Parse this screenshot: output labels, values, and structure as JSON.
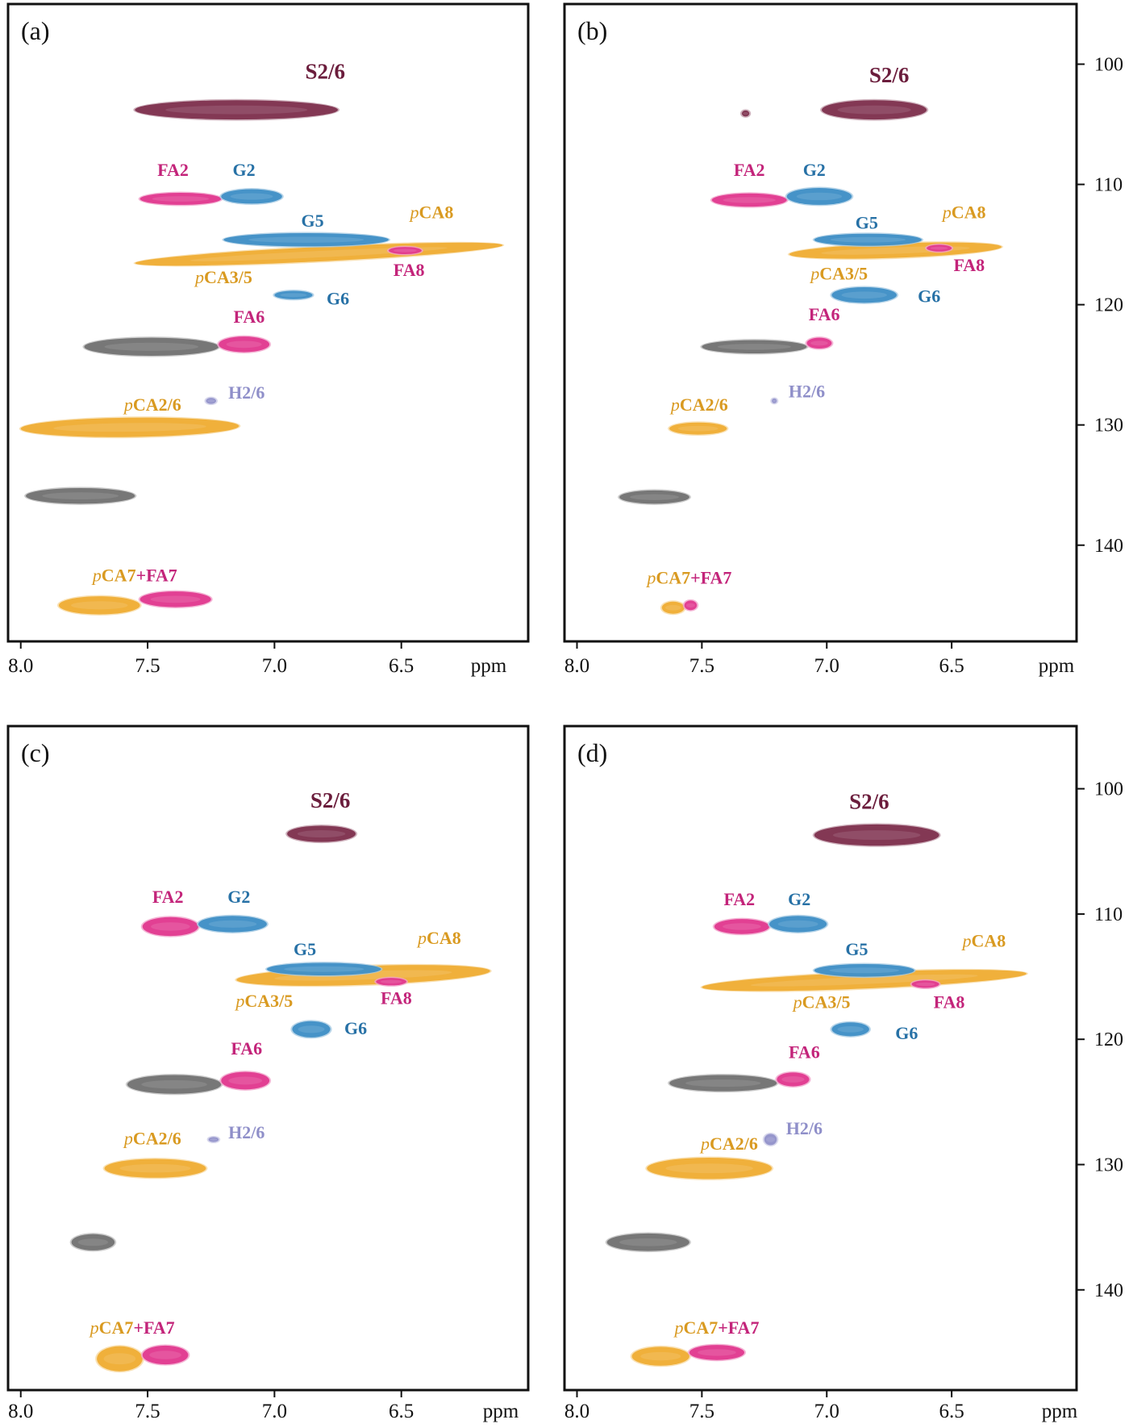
{
  "colors": {
    "S": "#7a2a48",
    "G": "#3a8cc4",
    "FA": "#e0338c",
    "pCA": "#eeab2e",
    "H": "#8f8fc9",
    "gray": "#6e6e6e",
    "label_S": "#6b1d3c",
    "label_G": "#2771a6",
    "label_FA": "#c3247a",
    "label_pCA": "#d99a21",
    "label_H": "#8f8fc9"
  },
  "chart_data": [
    {
      "type": "scatter",
      "panel_label": "(a)",
      "x_axis": {
        "range": [
          8.05,
          6.0
        ],
        "ticks": [
          8.0,
          7.5,
          7.0,
          6.5
        ],
        "unit": "ppm"
      },
      "y_axis": {
        "range": [
          95,
          148
        ],
        "ticks": [
          100,
          110,
          120,
          130,
          140
        ]
      },
      "peaks": [
        {
          "x1": 7.55,
          "x2": 6.75,
          "y": 103.8,
          "rh": 0.8,
          "c": "S"
        },
        {
          "x1": 7.53,
          "x2": 7.21,
          "y": 111.2,
          "rh": 0.5,
          "c": "FA"
        },
        {
          "x1": 7.21,
          "x2": 6.97,
          "y": 111.0,
          "rh": 0.6,
          "c": "G"
        },
        {
          "x1": 7.55,
          "x2": 6.1,
          "y": 115.8,
          "rh": 0.6,
          "c": "pCA",
          "tilt": 2.8
        },
        {
          "x1": 7.2,
          "x2": 6.55,
          "y": 114.6,
          "rh": 0.55,
          "c": "G"
        },
        {
          "x1": 6.55,
          "x2": 6.42,
          "y": 115.5,
          "rh": 0.3,
          "c": "FA"
        },
        {
          "x1": 7.0,
          "x2": 6.85,
          "y": 119.2,
          "rh": 0.35,
          "c": "G"
        },
        {
          "x1": 7.75,
          "x2": 7.22,
          "y": 123.5,
          "rh": 0.75,
          "c": "gray"
        },
        {
          "x1": 7.22,
          "x2": 7.02,
          "y": 123.3,
          "rh": 0.65,
          "c": "FA"
        },
        {
          "x1": 7.27,
          "x2": 7.23,
          "y": 128.0,
          "rh": 0.25,
          "c": "H"
        },
        {
          "x1": 8.0,
          "x2": 7.14,
          "y": 130.2,
          "rh": 0.8,
          "c": "pCA",
          "tilt": 0.7
        },
        {
          "x1": 7.98,
          "x2": 7.55,
          "y": 135.9,
          "rh": 0.65,
          "c": "gray"
        },
        {
          "x1": 7.85,
          "x2": 7.53,
          "y": 145.0,
          "rh": 0.75,
          "c": "pCA"
        },
        {
          "x1": 7.53,
          "x2": 7.25,
          "y": 144.5,
          "rh": 0.65,
          "c": "FA"
        }
      ],
      "labels": [
        {
          "t": "S2/6",
          "x": 6.8,
          "y": 101.2,
          "c": "label_S",
          "big": true
        },
        {
          "t": "FA2",
          "x": 7.4,
          "y": 109.3,
          "c": "label_FA"
        },
        {
          "t": "G2",
          "x": 7.12,
          "y": 109.3,
          "c": "label_G"
        },
        {
          "t": "G5",
          "x": 6.85,
          "y": 113.5,
          "c": "label_G"
        },
        {
          "t": "pCA8",
          "x": 6.38,
          "y": 112.8,
          "c": "label_pCA"
        },
        {
          "t": "FA8",
          "x": 6.47,
          "y": 117.6,
          "c": "label_FA"
        },
        {
          "t": "pCA3/5",
          "x": 7.2,
          "y": 118.2,
          "c": "label_pCA"
        },
        {
          "t": "G6",
          "x": 6.75,
          "y": 120.0,
          "c": "label_G"
        },
        {
          "t": "FA6",
          "x": 7.1,
          "y": 121.5,
          "c": "label_FA"
        },
        {
          "t": "H2/6",
          "x": 7.11,
          "y": 127.8,
          "c": "label_H"
        },
        {
          "t": "pCA2/6",
          "x": 7.48,
          "y": 128.8,
          "c": "label_pCA"
        },
        {
          "t": "pCA7+FA7",
          "x": 7.55,
          "y": 143.0,
          "c": "label_pCA"
        }
      ]
    },
    {
      "type": "scatter",
      "panel_label": "(b)",
      "x_axis": {
        "range": [
          8.05,
          6.0
        ],
        "ticks": [
          8.0,
          7.5,
          7.0,
          6.5
        ],
        "unit": "ppm"
      },
      "y_axis": {
        "range": [
          95,
          148
        ],
        "ticks": [
          100,
          110,
          120,
          130,
          140
        ]
      },
      "peaks": [
        {
          "x1": 7.02,
          "x2": 6.6,
          "y": 103.8,
          "rh": 0.8,
          "c": "S"
        },
        {
          "x1": 7.34,
          "x2": 7.31,
          "y": 104.1,
          "rh": 0.25,
          "c": "S"
        },
        {
          "x1": 7.46,
          "x2": 7.16,
          "y": 111.3,
          "rh": 0.55,
          "c": "FA"
        },
        {
          "x1": 7.16,
          "x2": 6.9,
          "y": 111.0,
          "rh": 0.7,
          "c": "G"
        },
        {
          "x1": 7.15,
          "x2": 6.3,
          "y": 115.5,
          "rh": 0.6,
          "c": "pCA",
          "tilt": 2.0
        },
        {
          "x1": 7.05,
          "x2": 6.62,
          "y": 114.6,
          "rh": 0.5,
          "c": "G"
        },
        {
          "x1": 6.6,
          "x2": 6.5,
          "y": 115.3,
          "rh": 0.28,
          "c": "FA"
        },
        {
          "x1": 6.98,
          "x2": 6.72,
          "y": 119.2,
          "rh": 0.65,
          "c": "G"
        },
        {
          "x1": 7.5,
          "x2": 7.08,
          "y": 123.5,
          "rh": 0.55,
          "c": "gray"
        },
        {
          "x1": 7.08,
          "x2": 6.98,
          "y": 123.2,
          "rh": 0.45,
          "c": "FA"
        },
        {
          "x1": 7.22,
          "x2": 7.2,
          "y": 128.0,
          "rh": 0.2,
          "c": "H"
        },
        {
          "x1": 7.63,
          "x2": 7.4,
          "y": 130.3,
          "rh": 0.5,
          "c": "pCA"
        },
        {
          "x1": 7.83,
          "x2": 7.55,
          "y": 136.0,
          "rh": 0.55,
          "c": "gray"
        },
        {
          "x1": 7.66,
          "x2": 7.57,
          "y": 145.2,
          "rh": 0.5,
          "c": "pCA"
        },
        {
          "x1": 7.57,
          "x2": 7.52,
          "y": 145.0,
          "rh": 0.4,
          "c": "FA"
        }
      ],
      "labels": [
        {
          "t": "S2/6",
          "x": 6.75,
          "y": 101.5,
          "c": "label_S",
          "big": true
        },
        {
          "t": "FA2",
          "x": 7.31,
          "y": 109.3,
          "c": "label_FA"
        },
        {
          "t": "G2",
          "x": 7.05,
          "y": 109.3,
          "c": "label_G"
        },
        {
          "t": "G5",
          "x": 6.84,
          "y": 113.7,
          "c": "label_G"
        },
        {
          "t": "pCA8",
          "x": 6.45,
          "y": 112.8,
          "c": "label_pCA"
        },
        {
          "t": "FA8",
          "x": 6.43,
          "y": 117.2,
          "c": "label_FA"
        },
        {
          "t": "pCA3/5",
          "x": 6.95,
          "y": 117.9,
          "c": "label_pCA"
        },
        {
          "t": "G6",
          "x": 6.59,
          "y": 119.8,
          "c": "label_G"
        },
        {
          "t": "FA6",
          "x": 7.01,
          "y": 121.3,
          "c": "label_FA"
        },
        {
          "t": "H2/6",
          "x": 7.08,
          "y": 127.7,
          "c": "label_H"
        },
        {
          "t": "pCA2/6",
          "x": 7.51,
          "y": 128.8,
          "c": "label_pCA"
        },
        {
          "t": "pCA7+FA7",
          "x": 7.55,
          "y": 143.2,
          "c": "label_pCA"
        }
      ]
    },
    {
      "type": "scatter",
      "panel_label": "(c)",
      "x_axis": {
        "range": [
          8.05,
          6.0
        ],
        "ticks": [
          8.0,
          7.5,
          7.0,
          6.5
        ],
        "unit": "ppm"
      },
      "y_axis": {
        "range": [
          95,
          148
        ],
        "ticks": [
          100,
          110,
          120,
          130,
          140
        ]
      },
      "peaks": [
        {
          "x1": 6.95,
          "x2": 6.68,
          "y": 103.6,
          "rh": 0.65,
          "c": "S"
        },
        {
          "x1": 7.52,
          "x2": 7.3,
          "y": 111.0,
          "rh": 0.75,
          "c": "FA"
        },
        {
          "x1": 7.3,
          "x2": 7.03,
          "y": 110.8,
          "rh": 0.65,
          "c": "G"
        },
        {
          "x1": 7.15,
          "x2": 6.15,
          "y": 114.9,
          "rh": 0.75,
          "c": "pCA",
          "tilt": 2.0
        },
        {
          "x1": 7.03,
          "x2": 6.58,
          "y": 114.4,
          "rh": 0.5,
          "c": "G"
        },
        {
          "x1": 6.6,
          "x2": 6.48,
          "y": 115.4,
          "rh": 0.3,
          "c": "FA"
        },
        {
          "x1": 6.93,
          "x2": 6.78,
          "y": 119.2,
          "rh": 0.65,
          "c": "G"
        },
        {
          "x1": 7.58,
          "x2": 7.21,
          "y": 123.6,
          "rh": 0.75,
          "c": "gray"
        },
        {
          "x1": 7.21,
          "x2": 7.02,
          "y": 123.3,
          "rh": 0.7,
          "c": "FA"
        },
        {
          "x1": 7.26,
          "x2": 7.22,
          "y": 128.0,
          "rh": 0.2,
          "c": "H"
        },
        {
          "x1": 7.67,
          "x2": 7.27,
          "y": 130.3,
          "rh": 0.75,
          "c": "pCA"
        },
        {
          "x1": 7.8,
          "x2": 7.63,
          "y": 136.2,
          "rh": 0.65,
          "c": "gray"
        },
        {
          "x1": 7.7,
          "x2": 7.52,
          "y": 145.5,
          "rh": 1.0,
          "c": "pCA"
        },
        {
          "x1": 7.52,
          "x2": 7.34,
          "y": 145.2,
          "rh": 0.75,
          "c": "FA"
        }
      ],
      "labels": [
        {
          "t": "S2/6",
          "x": 6.78,
          "y": 101.5,
          "c": "label_S",
          "big": true
        },
        {
          "t": "FA2",
          "x": 7.42,
          "y": 109.1,
          "c": "label_FA"
        },
        {
          "t": "G2",
          "x": 7.14,
          "y": 109.1,
          "c": "label_G"
        },
        {
          "t": "G5",
          "x": 6.88,
          "y": 113.3,
          "c": "label_G"
        },
        {
          "t": "pCA8",
          "x": 6.35,
          "y": 112.4,
          "c": "label_pCA"
        },
        {
          "t": "FA8",
          "x": 6.52,
          "y": 117.2,
          "c": "label_FA"
        },
        {
          "t": "pCA3/5",
          "x": 7.04,
          "y": 117.4,
          "c": "label_pCA"
        },
        {
          "t": "G6",
          "x": 6.68,
          "y": 119.6,
          "c": "label_G"
        },
        {
          "t": "FA6",
          "x": 7.11,
          "y": 121.2,
          "c": "label_FA"
        },
        {
          "t": "H2/6",
          "x": 7.11,
          "y": 127.9,
          "c": "label_H"
        },
        {
          "t": "pCA2/6",
          "x": 7.48,
          "y": 128.4,
          "c": "label_pCA"
        },
        {
          "t": "pCA7+FA7",
          "x": 7.56,
          "y": 143.5,
          "c": "label_pCA"
        }
      ]
    },
    {
      "type": "scatter",
      "panel_label": "(d)",
      "x_axis": {
        "range": [
          8.05,
          6.0
        ],
        "ticks": [
          8.0,
          7.5,
          7.0,
          6.5
        ],
        "unit": "ppm"
      },
      "y_axis": {
        "range": [
          95,
          148
        ],
        "ticks": [
          100,
          110,
          120,
          130,
          140
        ]
      },
      "peaks": [
        {
          "x1": 7.05,
          "x2": 6.55,
          "y": 103.7,
          "rh": 0.85,
          "c": "S"
        },
        {
          "x1": 7.45,
          "x2": 7.23,
          "y": 111.0,
          "rh": 0.6,
          "c": "FA"
        },
        {
          "x1": 7.23,
          "x2": 7.0,
          "y": 110.8,
          "rh": 0.65,
          "c": "G"
        },
        {
          "x1": 7.5,
          "x2": 6.2,
          "y": 115.3,
          "rh": 0.65,
          "c": "pCA",
          "tilt": 2.4
        },
        {
          "x1": 7.05,
          "x2": 6.65,
          "y": 114.5,
          "rh": 0.5,
          "c": "G"
        },
        {
          "x1": 6.66,
          "x2": 6.55,
          "y": 115.6,
          "rh": 0.3,
          "c": "FA"
        },
        {
          "x1": 6.98,
          "x2": 6.83,
          "y": 119.2,
          "rh": 0.55,
          "c": "G"
        },
        {
          "x1": 7.63,
          "x2": 7.2,
          "y": 123.5,
          "rh": 0.65,
          "c": "gray"
        },
        {
          "x1": 7.2,
          "x2": 7.07,
          "y": 123.2,
          "rh": 0.55,
          "c": "FA"
        },
        {
          "x1": 7.25,
          "x2": 7.2,
          "y": 128.0,
          "rh": 0.45,
          "c": "H"
        },
        {
          "x1": 7.72,
          "x2": 7.22,
          "y": 130.3,
          "rh": 0.85,
          "c": "pCA"
        },
        {
          "x1": 7.88,
          "x2": 7.55,
          "y": 136.2,
          "rh": 0.7,
          "c": "gray"
        },
        {
          "x1": 7.78,
          "x2": 7.55,
          "y": 145.3,
          "rh": 0.75,
          "c": "pCA"
        },
        {
          "x1": 7.55,
          "x2": 7.33,
          "y": 145.0,
          "rh": 0.6,
          "c": "FA"
        }
      ],
      "labels": [
        {
          "t": "S2/6",
          "x": 6.83,
          "y": 101.6,
          "c": "label_S",
          "big": true
        },
        {
          "t": "FA2",
          "x": 7.35,
          "y": 109.3,
          "c": "label_FA"
        },
        {
          "t": "G2",
          "x": 7.11,
          "y": 109.3,
          "c": "label_G"
        },
        {
          "t": "G5",
          "x": 6.88,
          "y": 113.3,
          "c": "label_G"
        },
        {
          "t": "pCA8",
          "x": 6.37,
          "y": 112.6,
          "c": "label_pCA"
        },
        {
          "t": "FA8",
          "x": 6.51,
          "y": 117.5,
          "c": "label_FA"
        },
        {
          "t": "pCA3/5",
          "x": 7.02,
          "y": 117.5,
          "c": "label_pCA"
        },
        {
          "t": "G6",
          "x": 6.68,
          "y": 120.0,
          "c": "label_G"
        },
        {
          "t": "FA6",
          "x": 7.09,
          "y": 121.5,
          "c": "label_FA"
        },
        {
          "t": "H2/6",
          "x": 7.09,
          "y": 127.6,
          "c": "label_H"
        },
        {
          "t": "pCA2/6",
          "x": 7.39,
          "y": 128.8,
          "c": "label_pCA"
        },
        {
          "t": "pCA7+FA7",
          "x": 7.44,
          "y": 143.5,
          "c": "label_pCA"
        }
      ]
    }
  ]
}
